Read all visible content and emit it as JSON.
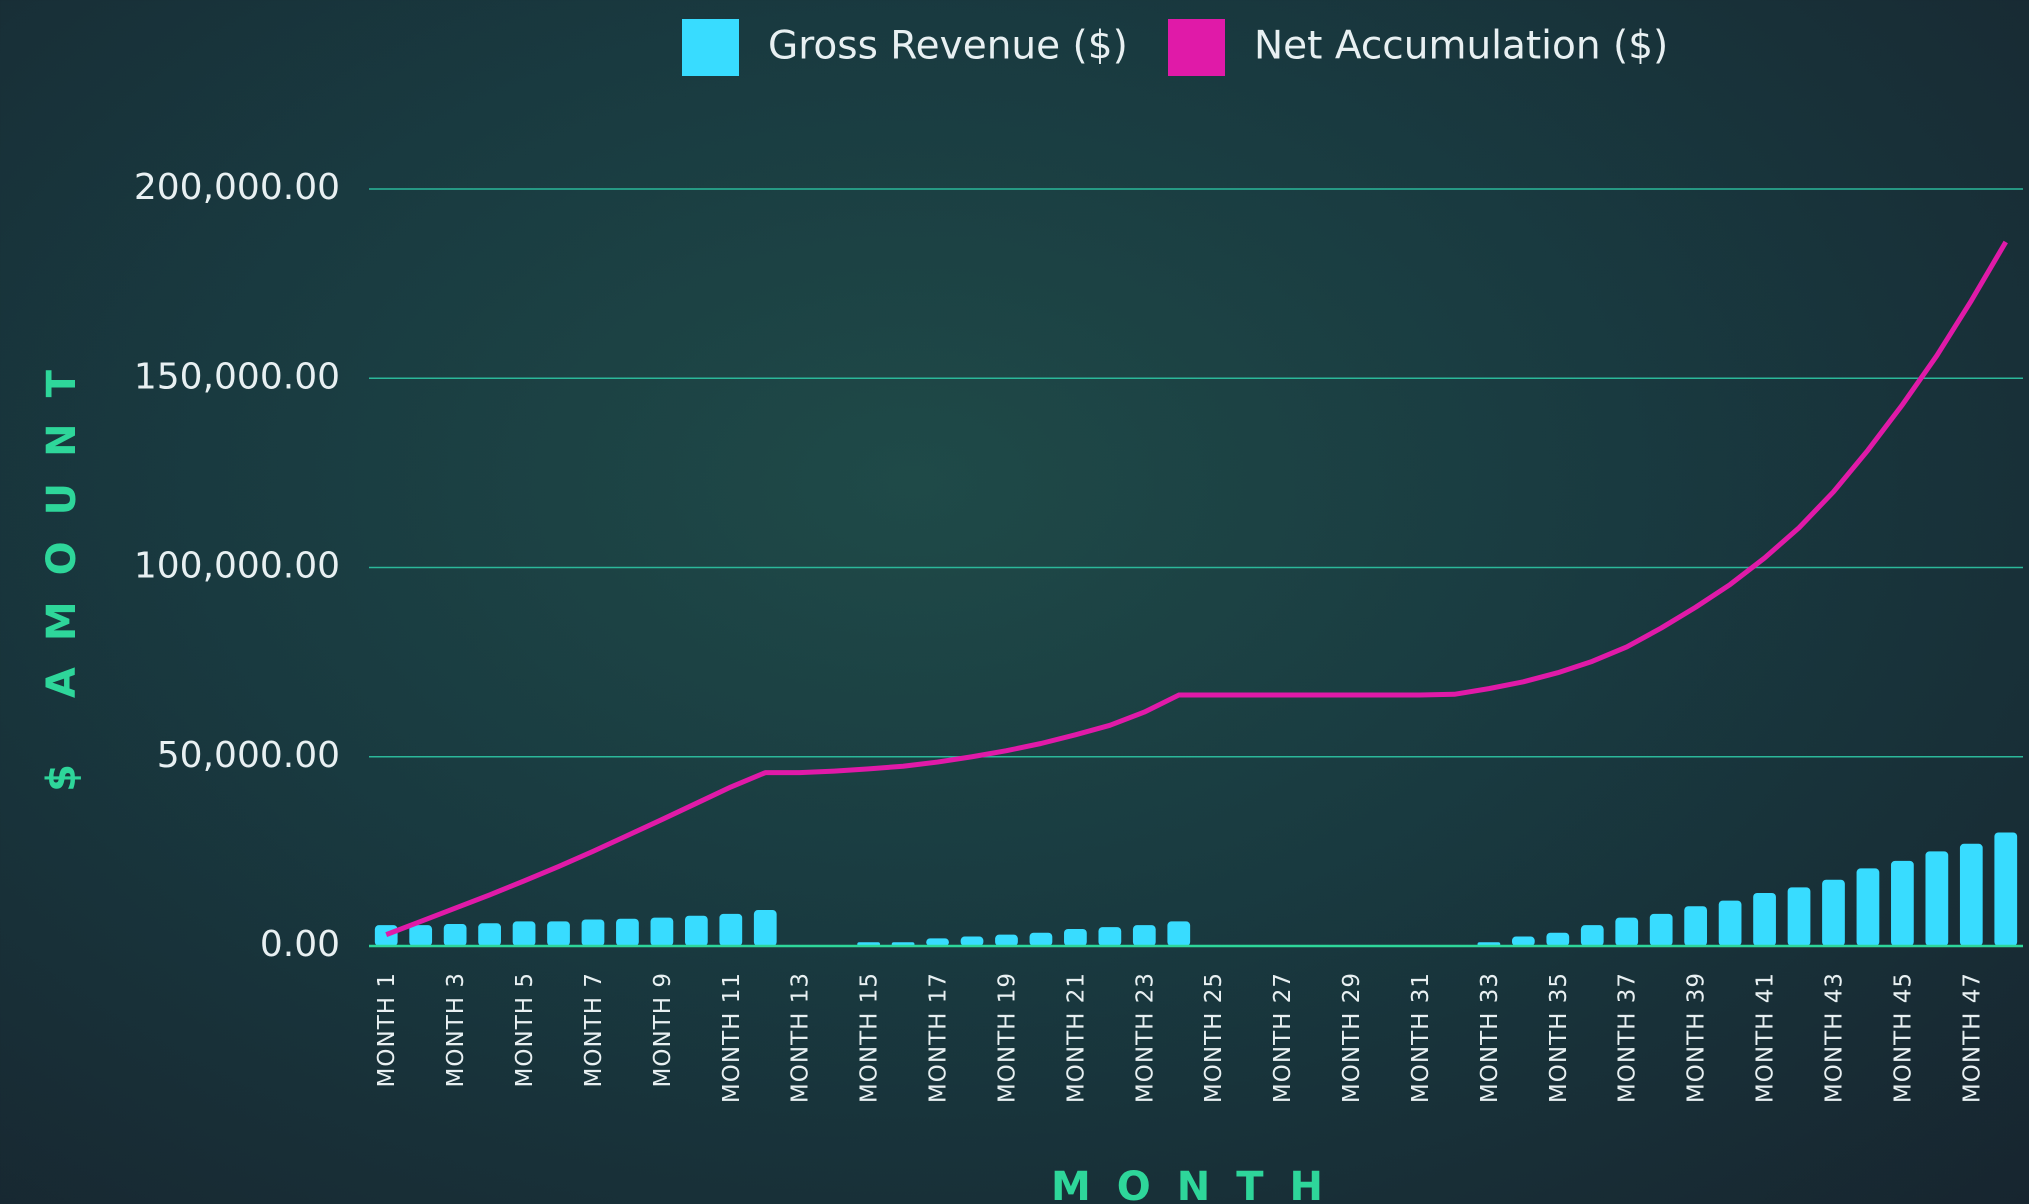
{
  "chart_data": {
    "type": "bar_line",
    "x_label": "MONTH",
    "y_label": "$ AMOUNT",
    "categories": [
      "MONTH 1",
      null,
      "MONTH 3",
      null,
      "MONTH 5",
      null,
      "MONTH 7",
      null,
      "MONTH 9",
      null,
      "MONTH 11",
      null,
      "MONTH 13",
      null,
      "MONTH 15",
      null,
      "MONTH 17",
      null,
      "MONTH 19",
      null,
      "MONTH 21",
      null,
      "MONTH 23",
      null,
      "MONTH 25",
      null,
      "MONTH 27",
      null,
      "MONTH 29",
      null,
      "MONTH 31",
      null,
      "MONTH 33",
      null,
      "MONTH 35",
      null,
      "MONTH 37",
      null,
      "MONTH 39",
      null,
      "MONTH 41",
      null,
      "MONTH 43",
      null,
      "MONTH 45",
      null,
      "MONTH 47",
      null
    ],
    "series": [
      {
        "name": "Gross Revenue ($)",
        "type": "bar",
        "color": "#38dcff",
        "values": [
          5500,
          5500,
          5800,
          6000,
          6500,
          6500,
          7000,
          7200,
          7500,
          8000,
          8500,
          9500,
          0,
          0,
          1000,
          1000,
          2000,
          2500,
          3000,
          3500,
          4500,
          5000,
          5500,
          6500,
          0,
          0,
          0,
          0,
          0,
          0,
          0,
          0,
          1000,
          2500,
          3500,
          5500,
          7500,
          8500,
          10500,
          12000,
          14000,
          15500,
          17500,
          20500,
          22500,
          25000,
          27000,
          30000
        ]
      },
      {
        "name": "Net Accumulation ($)",
        "type": "line",
        "color": "#e01aa8",
        "values": [
          3000,
          6500,
          10000,
          13500,
          17200,
          21000,
          25000,
          29200,
          33400,
          37700,
          42000,
          45800,
          45800,
          46200,
          46800,
          47500,
          48600,
          50000,
          51600,
          53500,
          55800,
          58300,
          61800,
          66300,
          66300,
          66300,
          66300,
          66300,
          66300,
          66300,
          66300,
          66500,
          68000,
          69800,
          72200,
          75200,
          79000,
          84000,
          89500,
          95500,
          102500,
          110500,
          120000,
          131000,
          143000,
          156000,
          170500,
          186000
        ]
      }
    ],
    "ylim": [
      0,
      200000
    ],
    "yticks": [
      {
        "value": 0,
        "label": "0.00"
      },
      {
        "value": 50000,
        "label": "50,000.00"
      },
      {
        "value": 100000,
        "label": "100,000.00"
      },
      {
        "value": 150000,
        "label": "150,000.00"
      },
      {
        "value": 200000,
        "label": "200,000.00"
      }
    ],
    "grid": true,
    "legend": "top"
  }
}
